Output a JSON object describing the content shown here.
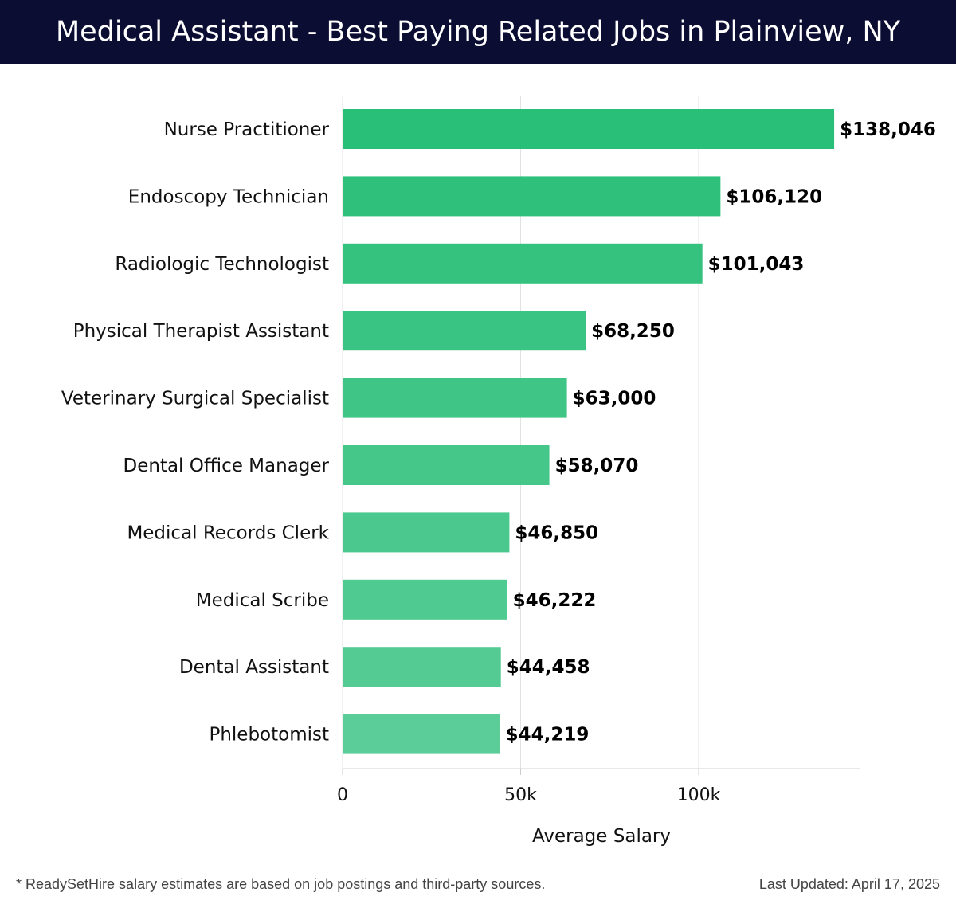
{
  "header": {
    "title": "Medical Assistant - Best Paying Related Jobs in Plainview, NY"
  },
  "chart_data": {
    "type": "bar",
    "orientation": "horizontal",
    "categories": [
      "Nurse Practitioner",
      "Endoscopy Technician",
      "Radiologic Technologist",
      "Physical Therapist Assistant",
      "Veterinary Surgical Specialist",
      "Dental Office Manager",
      "Medical Records Clerk",
      "Medical Scribe",
      "Dental Assistant",
      "Phlebotomist"
    ],
    "values": [
      138046,
      106120,
      101043,
      68250,
      63000,
      58070,
      46850,
      46222,
      44458,
      44219
    ],
    "value_labels": [
      "$138,046",
      "$106,120",
      "$101,043",
      "$68,250",
      "$63,000",
      "$58,070",
      "$46,850",
      "$46,222",
      "$44,458",
      "$44,219"
    ],
    "xlabel": "Average Salary",
    "ylabel": "",
    "xlim": [
      0,
      145000
    ],
    "xticks": [
      0,
      50000,
      100000
    ],
    "xtick_labels": [
      "0",
      "50k",
      "100k"
    ],
    "grid": "vertical",
    "bar_color_top": "#2abf78",
    "bar_color_bottom": "#5acd98"
  },
  "footer": {
    "note": "* ReadySetHire salary estimates are based on job postings and third-party sources.",
    "updated": "Last Updated: April 17, 2025"
  }
}
